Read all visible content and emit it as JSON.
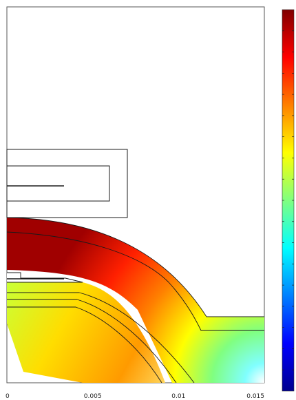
{
  "axis": {
    "x_ticks": [
      {
        "value": 0,
        "label": "0"
      },
      {
        "value": 0.005,
        "label": "0.005"
      },
      {
        "value": 0.01,
        "label": "0.01"
      },
      {
        "value": 0.015,
        "label": "0.015"
      }
    ]
  },
  "colorbar": {
    "colors": [
      "#00008f",
      "#0000ff",
      "#0080ff",
      "#00ffff",
      "#80ff80",
      "#ffff00",
      "#ff8000",
      "#ff0000",
      "#800000"
    ],
    "tick_count": 18
  },
  "colors": {
    "outline": "#1a1a1a",
    "frame": "#555555"
  }
}
